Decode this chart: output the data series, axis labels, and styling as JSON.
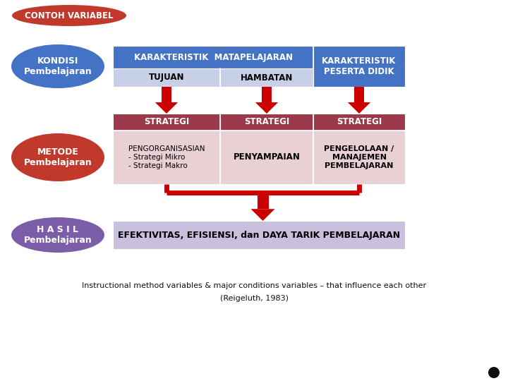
{
  "bg_color": "#ffffff",
  "title_label": "CONTOH VARIABEL",
  "title_bg": "#c0392b",
  "title_fg": "#ffffff",
  "kondisi_label": "KONDISI\nPembelajaran",
  "kondisi_bg": "#4472c4",
  "kondisi_fg": "#ffffff",
  "metode_label": "METODE\nPembelajaran",
  "metode_bg": "#c0392b",
  "metode_fg": "#ffffff",
  "hasil_label": "H A S I L\nPembelajaran",
  "hasil_bg": "#7b5ea7",
  "hasil_fg": "#ffffff",
  "header1_bg": "#4472c4",
  "header1_fg": "#ffffff",
  "header1_text": "KARAKTERISTIK  MATAPELAJARAN",
  "header2_bg": "#4472c4",
  "header2_fg": "#ffffff",
  "header2_text": "KARAKTERISTIK\nPESERTA DIDIK",
  "sub_bg": "#c8d0e8",
  "sub_fg": "#000000",
  "tujuan_text": "TUJUAN",
  "hambatan_text": "HAMBATAN",
  "strat_hdr_bg": "#9b3a4a",
  "strat_hdr_fg": "#ffffff",
  "strat_text": "STRATEGI",
  "cell_bg": "#e8d0d5",
  "cell1_fg": "#000000",
  "cell1_text": "PENGORGANISASIAN\n- Strategi Mikro\n- Strategi Makro",
  "cell2_text": "PENYAMPAIAN",
  "cell3_text": "PENGELOLAAN /\nMANAJEMEN\nPEMBELAJARAN",
  "hasil_box_bg": "#c8c0dc",
  "hasil_box_fg": "#000000",
  "hasil_box_text": "EFEKTIVITAS, EFISIENSI, dan DAYA TARIK PEMBELAJARAN",
  "arrow_color": "#cc0000",
  "footnote_line1": "Instructional method variables & major conditions variables – that influence each other",
  "footnote_line2": "(Reigeluth, 1983)",
  "dot_color": "#111111"
}
